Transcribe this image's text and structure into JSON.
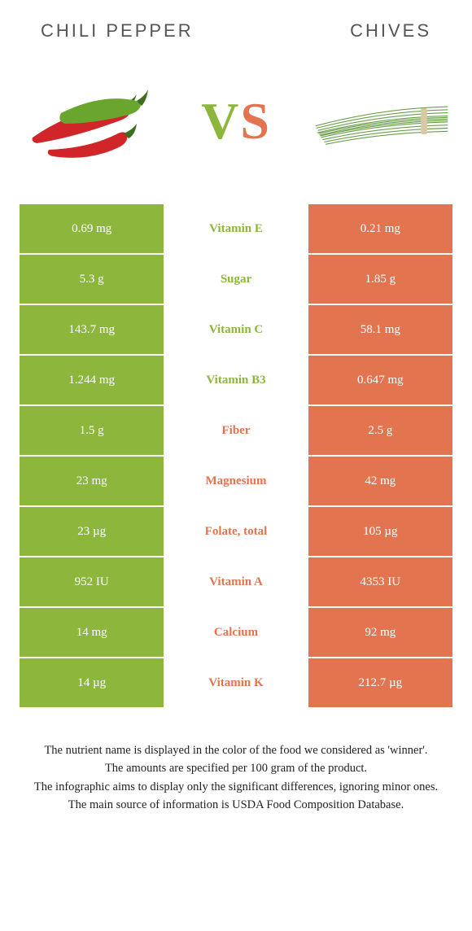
{
  "colors": {
    "left": "#8cb63c",
    "right": "#e2744f",
    "vs_v": "#8cb63c",
    "vs_s": "#e2744f",
    "chili_red": "#d0262a",
    "chili_green": "#6aa52d",
    "chili_stem": "#3c6e1f",
    "chives_green": "#6b9e4a",
    "chives_tie": "#d9c9a3",
    "header_text": "#555555"
  },
  "header": {
    "left": "CHILI PEPPER",
    "right": "CHIVES"
  },
  "vs": {
    "v": "V",
    "s": "S"
  },
  "rows": [
    {
      "left": "0.69 mg",
      "mid": "Vitamin E",
      "right": "0.21 mg",
      "winner": "left"
    },
    {
      "left": "5.3 g",
      "mid": "Sugar",
      "right": "1.85 g",
      "winner": "left"
    },
    {
      "left": "143.7 mg",
      "mid": "Vitamin C",
      "right": "58.1 mg",
      "winner": "left"
    },
    {
      "left": "1.244 mg",
      "mid": "Vitamin B3",
      "right": "0.647 mg",
      "winner": "left"
    },
    {
      "left": "1.5 g",
      "mid": "Fiber",
      "right": "2.5 g",
      "winner": "right"
    },
    {
      "left": "23 mg",
      "mid": "Magnesium",
      "right": "42 mg",
      "winner": "right"
    },
    {
      "left": "23 µg",
      "mid": "Folate, total",
      "right": "105 µg",
      "winner": "right"
    },
    {
      "left": "952 IU",
      "mid": "Vitamin A",
      "right": "4353 IU",
      "winner": "right"
    },
    {
      "left": "14 mg",
      "mid": "Calcium",
      "right": "92 mg",
      "winner": "right"
    },
    {
      "left": "14 µg",
      "mid": "Vitamin K",
      "right": "212.7 µg",
      "winner": "right"
    }
  ],
  "footnote": {
    "l1": "The nutrient name is displayed in the color of the food we considered as 'winner'.",
    "l2": "The amounts are specified per 100 gram of the product.",
    "l3": "The infographic aims to display only the significant differences, ignoring minor ones.",
    "l4": "The main source of information is USDA Food Composition Database."
  }
}
